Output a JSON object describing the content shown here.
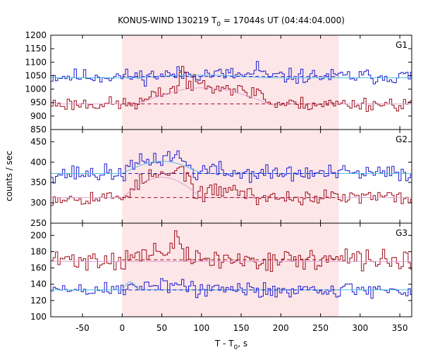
{
  "chart_data": {
    "type": "line",
    "title": {
      "prefix": "KONUS-WIND 130219 T",
      "sub": "0",
      "suffix": " = 17044s UT (04:44:04.000)"
    },
    "xlabel": {
      "prefix": "T - T",
      "sub": "0",
      "suffix": ", s"
    },
    "ylabel": "counts / sec",
    "xlim": [
      -90,
      365
    ],
    "xticks": [
      -50,
      0,
      50,
      100,
      150,
      200,
      250,
      300,
      350
    ],
    "xtick_labels": [
      "-50",
      "0",
      "50",
      "100",
      "150",
      "200",
      "250",
      "300",
      "350"
    ],
    "shaded_interval": {
      "x": [
        0,
        273
      ],
      "color": "#fde6e8"
    },
    "colors": {
      "blue": "#1a1acd",
      "red": "#9b0a17",
      "blue_fit": "#4fbfe6",
      "red_fit": "#e0a0d0"
    },
    "panels": [
      {
        "label": "G1",
        "ylim": [
          850,
          1200
        ],
        "yticks": [
          850,
          900,
          950,
          1000,
          1050,
          1100,
          1150,
          1200
        ],
        "ytick_labels": [
          "850",
          "900",
          "950",
          "1000",
          "1050",
          "1100",
          "1150",
          "1200"
        ],
        "series": [
          {
            "color_key": "blue",
            "background_level": 1047,
            "noise": 24,
            "seed": 11,
            "bumps": [
              {
                "t0": 20,
                "t1": 180,
                "amp": 10
              },
              {
                "t0": 165,
                "t1": 175,
                "amp": 40
              }
            ],
            "fit": {
              "level": 1042,
              "bumps": [
                {
                  "t0": 20,
                  "t1": 180,
                  "amp": 10
                }
              ]
            }
          },
          {
            "color_key": "red",
            "background_level": 945,
            "noise": 22,
            "seed": 23,
            "bumps": [
              {
                "t0": 20,
                "t1": 185,
                "amp": 75
              },
              {
                "t0": 70,
                "t1": 82,
                "amp": 70
              },
              {
                "t0": 160,
                "t1": 185,
                "amp": 30
              }
            ],
            "fit": {
              "level": 945,
              "bumps": [
                {
                  "t0": 20,
                  "t1": 185,
                  "amp": 60
                }
              ]
            }
          }
        ]
      },
      {
        "label": "G2",
        "ylim": [
          250,
          480
        ],
        "yticks": [
          250,
          300,
          350,
          400,
          450
        ],
        "ytick_labels": [
          "250",
          "300",
          "350",
          "400",
          "450"
        ],
        "series": [
          {
            "color_key": "blue",
            "background_level": 372,
            "noise": 18,
            "seed": 37,
            "bumps": [
              {
                "t0": 0,
                "t1": 90,
                "amp": 35
              },
              {
                "t0": 50,
                "t1": 90,
                "amp": 20
              },
              {
                "t0": 90,
                "t1": 135,
                "amp": 10
              }
            ],
            "fit": {
              "level": 372,
              "bumps": [
                {
                  "t0": 0,
                  "t1": 100,
                  "amp": 30
                }
              ]
            }
          },
          {
            "color_key": "red",
            "background_level": 313,
            "noise": 16,
            "seed": 53,
            "bumps": [
              {
                "t0": 0,
                "t1": 95,
                "amp": 55
              },
              {
                "t0": 60,
                "t1": 95,
                "amp": 35
              },
              {
                "t0": 95,
                "t1": 170,
                "amp": 20
              }
            ],
            "fit": {
              "level": 313,
              "bumps": [
                {
                  "t0": 0,
                  "t1": 100,
                  "amp": 50
                }
              ]
            }
          }
        ]
      },
      {
        "label": "G3",
        "ylim": [
          100,
          215
        ],
        "yticks": [
          100,
          120,
          140,
          160,
          180,
          200
        ],
        "ytick_labels": [
          "100",
          "120",
          "140",
          "160",
          "180",
          "200"
        ],
        "series": [
          {
            "color_key": "red",
            "background_level": 170,
            "noise": 11,
            "seed": 71,
            "bumps": [
              {
                "t0": 0,
                "t1": 100,
                "amp": 8
              },
              {
                "t0": 55,
                "t1": 80,
                "amp": 15
              }
            ],
            "fit": {
              "level": 168,
              "bumps": []
            }
          },
          {
            "color_key": "blue",
            "background_level": 133,
            "noise": 9,
            "seed": 89,
            "bumps": [
              {
                "t0": 0,
                "t1": 100,
                "amp": 8
              }
            ],
            "fit": {
              "level": 133,
              "bumps": [
                {
                  "t0": 0,
                  "t1": 20,
                  "amp": 10
                }
              ]
            }
          }
        ]
      }
    ]
  }
}
